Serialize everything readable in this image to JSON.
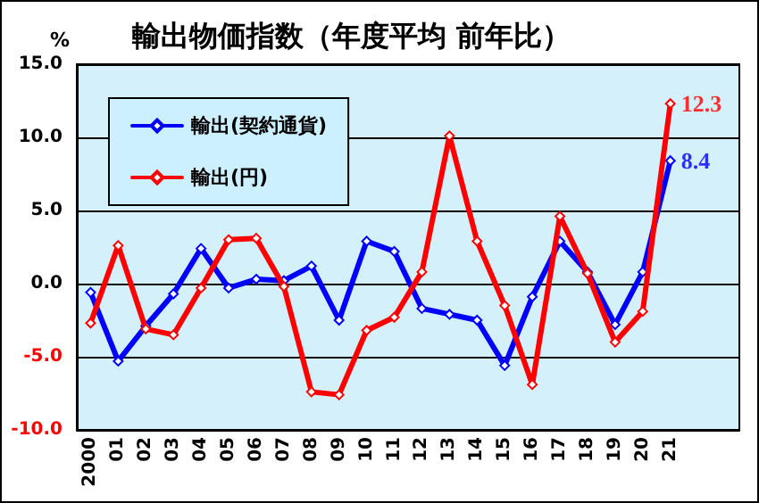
{
  "chart_data": {
    "type": "line",
    "title": "輸出物価指数（年度平均 前年比）",
    "ylabel": "%",
    "categories": [
      "2000",
      "01",
      "02",
      "03",
      "04",
      "05",
      "06",
      "07",
      "08",
      "09",
      "10",
      "11",
      "12",
      "13",
      "14",
      "15",
      "16",
      "17",
      "18",
      "19",
      "20",
      "21",
      null,
      null
    ],
    "series": [
      {
        "name": "輸出(契約通貨)",
        "color": "#0000ff",
        "values": [
          -0.6,
          -5.3,
          -2.9,
          -0.7,
          2.4,
          -0.3,
          0.3,
          0.2,
          1.2,
          -2.5,
          2.9,
          2.2,
          -1.7,
          -2.1,
          -2.5,
          -5.6,
          -0.9,
          2.9,
          0.8,
          -2.8,
          0.8,
          8.4,
          null,
          null
        ]
      },
      {
        "name": "輸出(円)",
        "color": "#ff0000",
        "values": [
          -2.7,
          2.6,
          -3.1,
          -3.5,
          -0.3,
          3.0,
          3.1,
          -0.2,
          -7.4,
          -7.6,
          -3.2,
          -2.3,
          0.8,
          10.1,
          2.9,
          -1.5,
          -6.9,
          4.6,
          0.7,
          -4.0,
          -1.9,
          12.3,
          null,
          null
        ]
      }
    ],
    "annotations": [
      {
        "text": "12.3",
        "x": "21",
        "y": 12.3
      },
      {
        "text": "8.4",
        "x": "21",
        "y": 8.4
      }
    ],
    "ylim": [
      -10,
      15
    ],
    "yticks": [
      {
        "value": -10,
        "label": "-10.0"
      },
      {
        "value": -5,
        "label": "-5.0"
      },
      {
        "value": 0,
        "label": "0.0"
      },
      {
        "value": 5,
        "label": "5.0"
      },
      {
        "value": 10,
        "label": "10.0"
      },
      {
        "value": 15,
        "label": "15.0"
      }
    ],
    "grid": "y",
    "legend": "top left",
    "marker": "diamond",
    "line_style": "solid"
  }
}
